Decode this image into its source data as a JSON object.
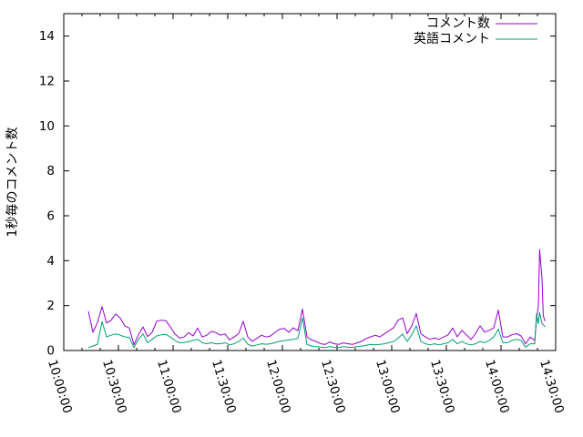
{
  "page": {
    "background_color": "#ffffff"
  },
  "chart_data": {
    "type": "line",
    "title": "",
    "xlabel": "",
    "ylabel": "1秒毎のコメント数",
    "ylim": [
      0,
      15
    ],
    "yticks": [
      0,
      2,
      4,
      6,
      8,
      10,
      12,
      14
    ],
    "xlim_minutes": [
      0,
      270
    ],
    "x_minor_step_minutes": 10,
    "grid": false,
    "legend_position": "top-right-inside",
    "axis_color": "#000000",
    "xticks": [
      {
        "minutes": 0,
        "label": "10:00:00"
      },
      {
        "minutes": 30,
        "label": "10:30:00"
      },
      {
        "minutes": 60,
        "label": "11:00:00"
      },
      {
        "minutes": 90,
        "label": "11:30:00"
      },
      {
        "minutes": 120,
        "label": "12:00:00"
      },
      {
        "minutes": 150,
        "label": "12:30:00"
      },
      {
        "minutes": 180,
        "label": "13:00:00"
      },
      {
        "minutes": 210,
        "label": "13:30:00"
      },
      {
        "minutes": 240,
        "label": "14:00:00"
      },
      {
        "minutes": 270,
        "label": "14:30:00"
      }
    ],
    "x_minutes": [
      13.5,
      16,
      18.5,
      21,
      23.5,
      26,
      28.5,
      31,
      33.5,
      36,
      38.5,
      41,
      43.5,
      46,
      48.5,
      51,
      53.5,
      56,
      58.5,
      61,
      63.5,
      66,
      68.5,
      71,
      73.5,
      76,
      78.5,
      81,
      83.5,
      86,
      88.5,
      91,
      93.5,
      96,
      98.5,
      101,
      103.5,
      106,
      108.5,
      111,
      113.5,
      116,
      118.5,
      121,
      123.5,
      126,
      128.5,
      131,
      133.5,
      136,
      138.5,
      141,
      143.5,
      146,
      148.5,
      151,
      153.5,
      156,
      158.5,
      161,
      163.5,
      166,
      168.5,
      171,
      173.5,
      176,
      178.5,
      181,
      183.5,
      186,
      188.5,
      191,
      193.5,
      196,
      198.5,
      201,
      203.5,
      206,
      208.5,
      211,
      213.5,
      216,
      218.5,
      221,
      223.5,
      226,
      228.5,
      231,
      233.5,
      236,
      238.5,
      241,
      243.5,
      246,
      248.5,
      251,
      253.5,
      256,
      258.5,
      259.5,
      260.5,
      261.2,
      262.5,
      263.2,
      264.2
    ],
    "series": [
      {
        "name": "コメント数",
        "color": "#9400d3",
        "y": [
          1.75,
          0.81,
          1.25,
          1.96,
          1.22,
          1.35,
          1.62,
          1.45,
          1.1,
          1.0,
          0.25,
          0.7,
          1.05,
          0.62,
          0.81,
          1.3,
          1.35,
          1.33,
          1.05,
          0.74,
          0.55,
          0.6,
          0.8,
          0.65,
          1.0,
          0.6,
          0.68,
          0.85,
          0.8,
          0.68,
          0.74,
          0.47,
          0.6,
          0.75,
          1.3,
          0.6,
          0.41,
          0.54,
          0.68,
          0.6,
          0.65,
          0.81,
          0.95,
          0.99,
          0.81,
          1.01,
          0.88,
          1.85,
          0.61,
          0.47,
          0.4,
          0.3,
          0.27,
          0.38,
          0.3,
          0.27,
          0.34,
          0.3,
          0.27,
          0.34,
          0.41,
          0.54,
          0.61,
          0.68,
          0.61,
          0.74,
          0.88,
          1.01,
          1.35,
          1.45,
          0.75,
          1.1,
          1.65,
          0.75,
          0.6,
          0.5,
          0.55,
          0.5,
          0.6,
          0.7,
          1.0,
          0.61,
          0.9,
          0.7,
          0.49,
          0.75,
          1.1,
          0.82,
          0.9,
          1.0,
          1.8,
          0.61,
          0.6,
          0.7,
          0.75,
          0.65,
          0.3,
          0.6,
          0.45,
          1.4,
          2.0,
          4.5,
          3.2,
          1.55,
          1.3
        ]
      },
      {
        "name": "英語コメント",
        "color": "#009e73",
        "y": [
          0.13,
          0.2,
          0.28,
          1.29,
          0.61,
          0.68,
          0.74,
          0.68,
          0.61,
          0.58,
          0.13,
          0.5,
          0.74,
          0.35,
          0.5,
          0.65,
          0.7,
          0.72,
          0.6,
          0.45,
          0.35,
          0.35,
          0.4,
          0.45,
          0.5,
          0.35,
          0.3,
          0.35,
          0.3,
          0.3,
          0.35,
          0.25,
          0.3,
          0.4,
          0.55,
          0.28,
          0.2,
          0.25,
          0.3,
          0.28,
          0.3,
          0.35,
          0.41,
          0.44,
          0.47,
          0.5,
          0.54,
          1.45,
          0.27,
          0.2,
          0.18,
          0.15,
          0.13,
          0.18,
          0.14,
          0.13,
          0.18,
          0.14,
          0.14,
          0.18,
          0.2,
          0.23,
          0.27,
          0.25,
          0.27,
          0.3,
          0.35,
          0.4,
          0.55,
          0.73,
          0.4,
          0.7,
          1.1,
          0.4,
          0.3,
          0.25,
          0.3,
          0.25,
          0.3,
          0.35,
          0.49,
          0.3,
          0.4,
          0.3,
          0.25,
          0.3,
          0.4,
          0.35,
          0.45,
          0.6,
          0.95,
          0.35,
          0.35,
          0.45,
          0.5,
          0.45,
          0.15,
          0.3,
          0.3,
          1.62,
          1.2,
          1.7,
          1.2,
          1.15,
          1.05
        ]
      }
    ]
  }
}
